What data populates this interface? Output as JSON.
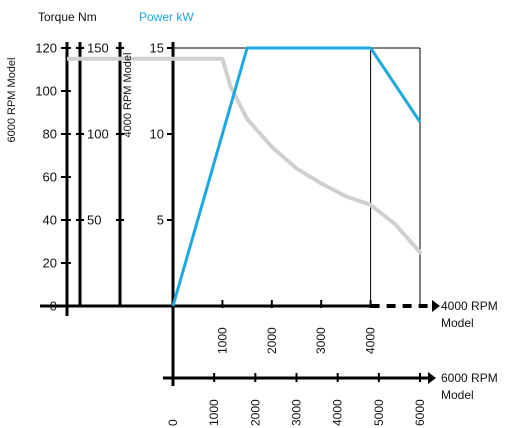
{
  "chart_data": {
    "type": "line",
    "headers": {
      "torque": "Torque Nm",
      "power": "Power kW"
    },
    "axes": {
      "torque_6000": {
        "label": "6000 RPM Model",
        "ticks": [
          "0",
          "20",
          "40",
          "60",
          "80",
          "100",
          "120"
        ],
        "range": [
          0,
          120
        ]
      },
      "torque_4000": {
        "ticks": [
          "50",
          "100",
          "150"
        ],
        "range": [
          0,
          150
        ]
      },
      "power": {
        "label": "4000 RPM Model",
        "ticks": [
          "5",
          "10",
          "15"
        ],
        "range": [
          0,
          15
        ]
      },
      "rpm_4000": {
        "label": "4000 RPM Model",
        "ticks": [
          "1000",
          "2000",
          "3000",
          "4000"
        ],
        "range": [
          0,
          5000
        ]
      },
      "rpm_6000": {
        "label": "6000 RPM Model",
        "ticks": [
          "0",
          "1000",
          "2000",
          "3000",
          "4000",
          "5000",
          "6000"
        ],
        "range": [
          0,
          6000
        ]
      }
    },
    "series": [
      {
        "key": "power",
        "color": "#1ea8e0",
        "x_rpm_4000_model": [
          0,
          1500,
          4000,
          5000
        ],
        "y_kw": [
          0,
          15,
          15,
          10.7
        ]
      },
      {
        "key": "torque",
        "color": "#d0d0d0",
        "x_rpm_6000_model": [
          0,
          1200,
          1400,
          1800,
          2400,
          3000,
          3600,
          4200,
          4800,
          5400,
          6000
        ],
        "y_nm": [
          115,
          115,
          102,
          87,
          74,
          64,
          57,
          51,
          47,
          38,
          25
        ]
      }
    ],
    "markers": {
      "rpm_4000_model": 4000
    },
    "grid": false,
    "legend": "none"
  }
}
